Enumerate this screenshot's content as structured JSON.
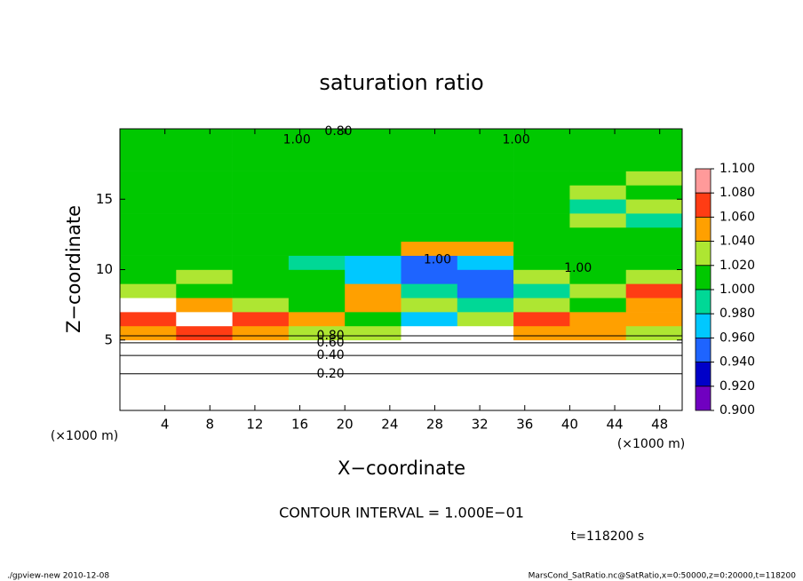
{
  "chart_data": {
    "type": "heatmap",
    "title": "saturation ratio",
    "x_label": "X−coordinate",
    "y_label": "Z−coordinate",
    "x_unit_label": "(×1000 m)",
    "y_unit_label": "(×1000 m)",
    "xlim": [
      0,
      50
    ],
    "ylim": [
      0,
      20
    ],
    "xticks": [
      4,
      8,
      12,
      16,
      20,
      24,
      28,
      32,
      36,
      40,
      44,
      48
    ],
    "yticks": [
      5,
      10,
      15
    ],
    "x_edges": [
      0,
      5,
      10,
      15,
      20,
      25,
      30,
      35,
      40,
      45,
      50
    ],
    "y_edges": [
      0,
      1,
      2,
      3,
      4,
      5,
      6,
      7,
      8,
      9,
      10,
      11,
      12,
      13,
      14,
      15,
      16,
      17,
      18,
      19,
      20
    ],
    "values": [
      [
        0.05,
        0.05,
        0.05,
        0.05,
        0.05,
        0.05,
        0.05,
        0.05,
        0.05,
        0.05
      ],
      [
        0.15,
        0.15,
        0.15,
        0.15,
        0.15,
        0.15,
        0.15,
        0.15,
        0.15,
        0.15
      ],
      [
        0.25,
        0.25,
        0.25,
        0.25,
        0.25,
        0.25,
        0.25,
        0.25,
        0.25,
        0.25
      ],
      [
        0.4,
        0.4,
        0.4,
        0.4,
        0.4,
        0.4,
        0.4,
        0.4,
        0.4,
        0.4
      ],
      [
        0.62,
        0.62,
        0.62,
        0.62,
        0.62,
        0.62,
        0.62,
        0.62,
        0.62,
        0.62
      ],
      [
        1.05,
        1.06,
        1.04,
        1.02,
        1.03,
        1.12,
        1.12,
        1.04,
        1.05,
        1.03
      ],
      [
        1.06,
        1.12,
        1.07,
        1.05,
        1.01,
        0.97,
        1.03,
        1.06,
        1.04,
        1.05
      ],
      [
        1.12,
        1.04,
        1.03,
        1.0,
        1.05,
        1.03,
        0.98,
        1.02,
        1.01,
        1.04
      ],
      [
        1.03,
        1.01,
        1.0,
        1.01,
        1.04,
        0.99,
        0.95,
        0.99,
        1.02,
        1.06
      ],
      [
        1.01,
        1.02,
        1.0,
        1.0,
        0.97,
        0.95,
        0.94,
        1.02,
        1.0,
        1.03
      ],
      [
        1.0,
        1.01,
        1.0,
        0.99,
        0.96,
        0.94,
        0.96,
        1.0,
        1.0,
        1.01
      ],
      [
        1.0,
        1.0,
        1.0,
        1.0,
        1.01,
        1.05,
        1.04,
        1.0,
        1.0,
        1.0
      ],
      [
        1.0,
        1.0,
        1.0,
        1.0,
        1.0,
        1.0,
        1.0,
        1.0,
        1.0,
        1.01
      ],
      [
        1.0,
        1.0,
        1.0,
        1.0,
        1.0,
        1.0,
        1.0,
        1.0,
        1.02,
        0.99
      ],
      [
        1.0,
        1.0,
        1.0,
        1.0,
        1.0,
        1.0,
        1.0,
        1.0,
        0.99,
        1.02
      ],
      [
        1.0,
        1.0,
        1.0,
        1.0,
        1.0,
        1.0,
        1.0,
        1.0,
        1.02,
        1.01
      ],
      [
        1.0,
        1.0,
        1.0,
        1.0,
        1.0,
        1.0,
        1.0,
        1.0,
        1.01,
        1.02
      ],
      [
        1.0,
        1.0,
        1.0,
        1.0,
        1.0,
        1.0,
        1.0,
        1.0,
        1.0,
        1.01
      ],
      [
        1.0,
        1.0,
        1.0,
        1.0,
        1.0,
        1.0,
        1.0,
        1.0,
        1.0,
        1.0
      ],
      [
        1.0,
        1.0,
        1.0,
        1.0,
        1.0,
        1.0,
        1.0,
        1.0,
        1.0,
        1.0
      ]
    ],
    "colorbar_ticks": [
      {
        "value": 1.1,
        "label": "1.100"
      },
      {
        "value": 1.08,
        "label": "1.080"
      },
      {
        "value": 1.06,
        "label": "1.060"
      },
      {
        "value": 1.04,
        "label": "1.040"
      },
      {
        "value": 1.02,
        "label": "1.020"
      },
      {
        "value": 1.0,
        "label": "1.000"
      },
      {
        "value": 0.98,
        "label": "0.980"
      },
      {
        "value": 0.96,
        "label": "0.960"
      },
      {
        "value": 0.94,
        "label": "0.940"
      },
      {
        "value": 0.92,
        "label": "0.920"
      },
      {
        "value": 0.9,
        "label": "0.900"
      }
    ],
    "colors": [
      "#ff9a9a",
      "#ff3c14",
      "#ffa000",
      "#aee632",
      "#00c800",
      "#00d896",
      "#00c8ff",
      "#1e64ff",
      "#0000c8",
      "#7000c0"
    ],
    "contour_labels": [
      {
        "text": "0.20",
        "x": 17.5,
        "z": 2.6
      },
      {
        "text": "0.40",
        "x": 17.5,
        "z": 3.9
      },
      {
        "text": "0.60",
        "x": 17.5,
        "z": 4.8
      },
      {
        "text": "0.80",
        "x": 17.5,
        "z": 5.3
      },
      {
        "text": "0.80",
        "x": 18.2,
        "z": 19.8
      },
      {
        "text": "1.00",
        "x": 14.5,
        "z": 19.2
      },
      {
        "text": "1.00",
        "x": 34,
        "z": 19.2
      },
      {
        "text": "1.00",
        "x": 27,
        "z": 10.7
      },
      {
        "text": "1.00",
        "x": 39.5,
        "z": 10.1
      }
    ],
    "contour_interval": "CONTOUR INTERVAL = 1.000E−01",
    "time_label": "t=118200 s",
    "footer_left": "./gpview-new   2010-12-08",
    "footer_right": "MarsCond_SatRatio.nc@SatRatio,x=0:50000,z=0:20000,t=118200"
  }
}
